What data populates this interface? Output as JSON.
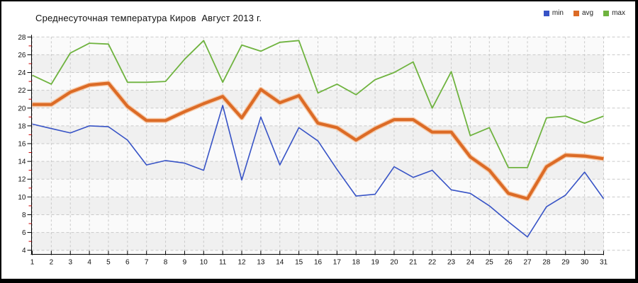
{
  "title": "Среднесуточная температура Киров  Август 2013 г.",
  "legend": {
    "position": "top-right"
  },
  "colors": {
    "min_series": "#3753c6",
    "avg_series": "#dc6b26",
    "avg_halo": "#f6c29b",
    "max_series": "#6fb33f",
    "grid": "#c9c9c9",
    "axis": "#000000",
    "minor_tick": "#cc0000",
    "plot_band_light": "#fafafa",
    "plot_band_dark": "#f0f0f0"
  },
  "chart_data": {
    "type": "line",
    "title": "Среднесуточная температура Киров  Август 2013 г.",
    "xlabel": "",
    "ylabel": "",
    "x": [
      1,
      2,
      3,
      4,
      5,
      6,
      7,
      8,
      9,
      10,
      11,
      12,
      13,
      14,
      15,
      16,
      17,
      18,
      19,
      20,
      21,
      22,
      23,
      24,
      25,
      26,
      27,
      28,
      29,
      30,
      31
    ],
    "ylim": [
      4,
      28
    ],
    "y_tick_step": 2,
    "y_minor_tick_step": 1,
    "grid": "dashed",
    "legend_position": "top-right",
    "series": [
      {
        "name": "min",
        "color": "#3753c6",
        "values": [
          18.2,
          17.7,
          17.2,
          18.0,
          17.9,
          16.4,
          13.6,
          14.1,
          13.8,
          13.0,
          20.3,
          11.9,
          19.0,
          13.6,
          17.8,
          16.3,
          13.1,
          10.1,
          10.3,
          13.4,
          12.2,
          13.0,
          10.8,
          10.4,
          9.0,
          7.2,
          5.5,
          8.9,
          10.2,
          12.8,
          9.8
        ]
      },
      {
        "name": "avg",
        "color": "#dc6b26",
        "values": [
          20.4,
          20.4,
          21.8,
          22.6,
          22.8,
          20.2,
          18.6,
          18.6,
          19.6,
          20.5,
          21.3,
          18.9,
          22.1,
          20.6,
          21.4,
          18.3,
          17.8,
          16.4,
          17.7,
          18.7,
          18.7,
          17.3,
          17.3,
          14.5,
          13.0,
          10.4,
          9.8,
          13.4,
          14.7,
          14.6,
          14.3
        ]
      },
      {
        "name": "max",
        "color": "#6fb33f",
        "values": [
          23.7,
          22.7,
          26.2,
          27.3,
          27.2,
          22.9,
          22.9,
          23.0,
          25.5,
          27.6,
          22.9,
          27.1,
          26.4,
          27.4,
          27.6,
          21.7,
          22.7,
          21.5,
          23.2,
          24.0,
          25.2,
          20.0,
          24.1,
          16.9,
          17.8,
          13.3,
          13.3,
          18.9,
          19.1,
          18.3,
          19.1
        ]
      }
    ]
  }
}
